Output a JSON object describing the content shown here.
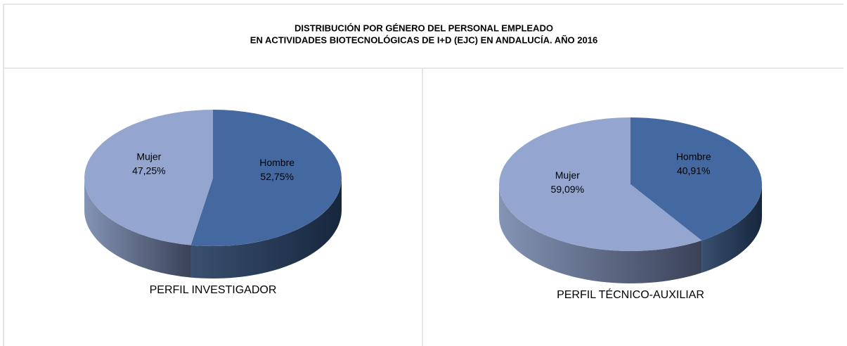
{
  "header": {
    "title_lines": [
      "DISTRIBUCIÓN POR GÉNERO DEL PERSONAL EMPLEADO",
      "EN ACTIVIDADES BIOTECNOLÓGICAS DE I+D (EJC) EN ANDALUCÍA. AÑO 2016"
    ]
  },
  "chart_data": [
    {
      "type": "pie",
      "title": "PERFIL INVESTIGADOR",
      "categories": [
        "Hombre",
        "Mujer"
      ],
      "values": [
        52.75,
        47.25
      ],
      "value_labels": [
        "52,75%",
        "47,25%"
      ],
      "colors": [
        "#4469a0",
        "#94a6cf"
      ]
    },
    {
      "type": "pie",
      "title": "PERFIL TÉCNICO-AUXILIAR",
      "categories": [
        "Hombre",
        "Mujer"
      ],
      "values": [
        40.91,
        59.09
      ],
      "value_labels": [
        "40,91%",
        "59,09%"
      ],
      "colors": [
        "#4469a0",
        "#94a6cf"
      ]
    }
  ]
}
